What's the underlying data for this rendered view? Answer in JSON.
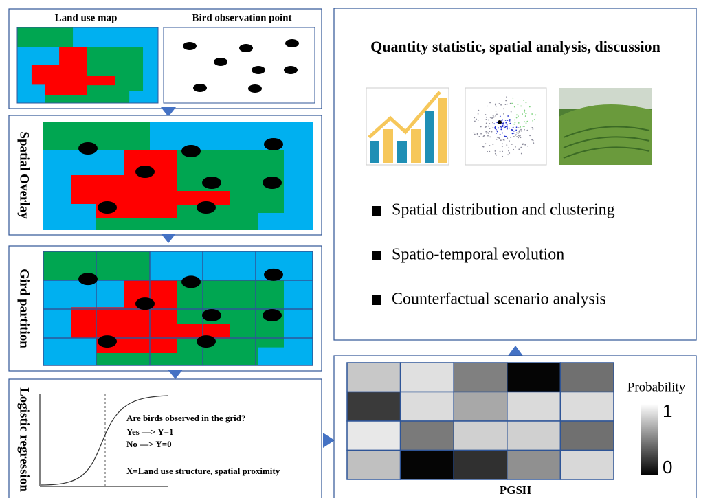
{
  "step1": {
    "land_use_title": "Land use map",
    "bird_title": "Bird observation point"
  },
  "step2": {
    "label": "Spatial Overlay"
  },
  "step3": {
    "label": "Gird partition"
  },
  "step4": {
    "label": "Logistic regression",
    "question": "Are birds observed in the grid?",
    "yes": "Yes —> Y=1",
    "no": "No —> Y=0",
    "x_def": "X=Land use structure, spatial proximity"
  },
  "results": {
    "title": "Quantity statistic, spatial analysis, discussion",
    "bullets": [
      "Spatial distribution and clustering",
      "Spatio-temporal evolution",
      "Counterfactual scenario analysis"
    ]
  },
  "pgsh": {
    "title": "PGSH",
    "legend_title": "Probability",
    "legend_high": "1",
    "legend_low": "0"
  }
}
